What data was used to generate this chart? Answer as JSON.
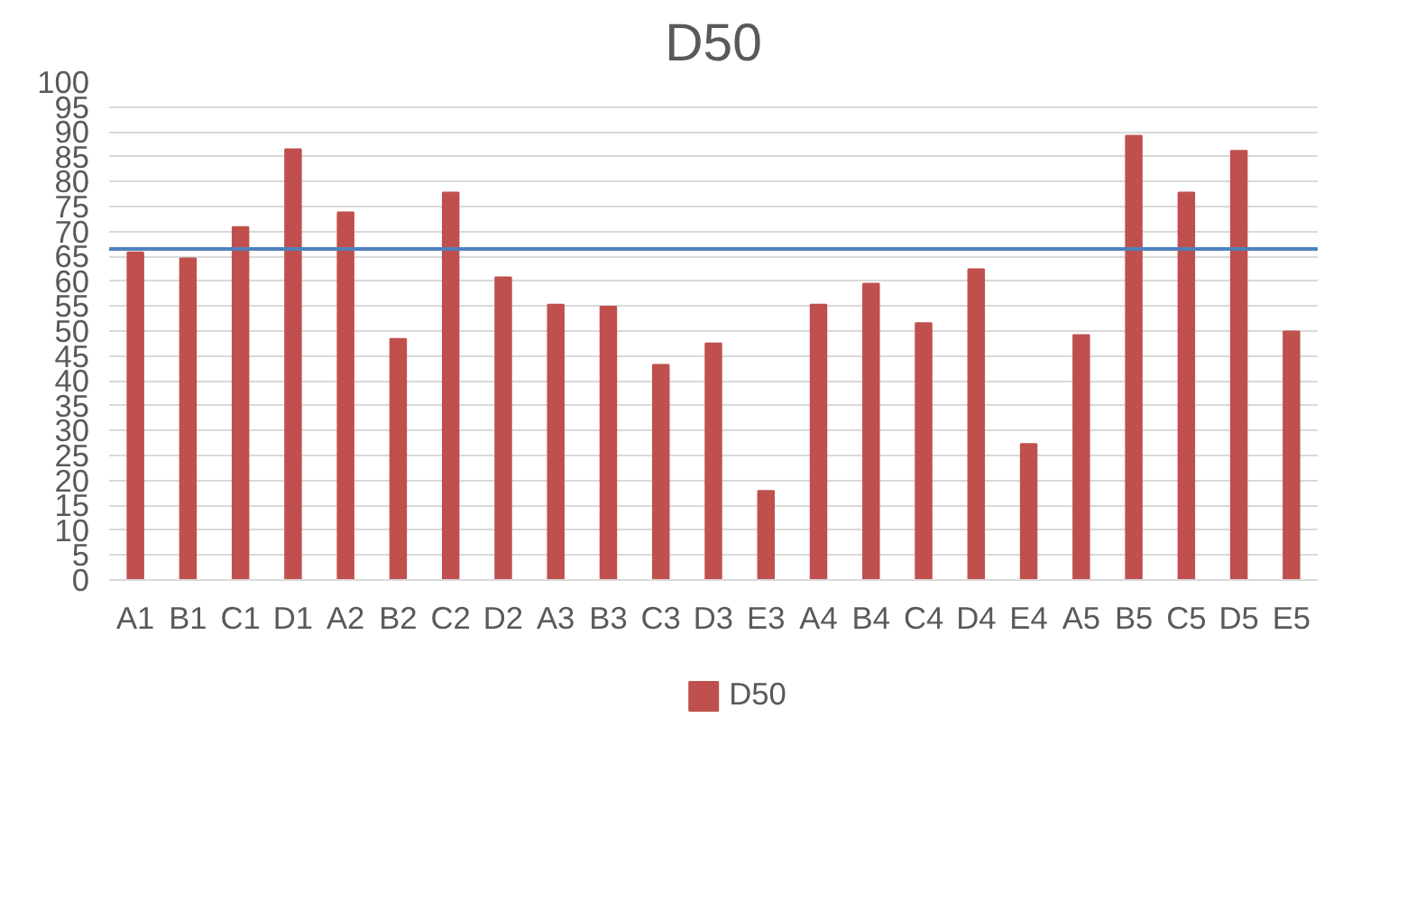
{
  "chart_data": {
    "type": "bar",
    "title": "D50",
    "categories": [
      "A1",
      "B1",
      "C1",
      "D1",
      "A2",
      "B2",
      "C2",
      "D2",
      "A3",
      "B3",
      "C3",
      "D3",
      "E3",
      "A4",
      "B4",
      "C4",
      "D4",
      "E4",
      "A5",
      "B5",
      "C5",
      "D5",
      "E5"
    ],
    "series": [
      {
        "name": "D50",
        "color": "#c0504d",
        "values": [
          65.8,
          64.6,
          70.9,
          86.5,
          73.8,
          48.4,
          77.8,
          60.8,
          55.3,
          54.9,
          43.2,
          47.5,
          17.9,
          55.3,
          59.5,
          51.6,
          62.4,
          27.3,
          49.2,
          89.2,
          77.8,
          86.2,
          49.9
        ]
      }
    ],
    "ylim": [
      0,
      100
    ],
    "yticks": [
      0,
      5,
      10,
      15,
      20,
      25,
      30,
      35,
      40,
      45,
      50,
      55,
      60,
      65,
      70,
      75,
      80,
      85,
      90,
      95,
      100
    ],
    "ref_lines": [
      {
        "axis": "y",
        "value": 66.5,
        "label": null,
        "color": "#4f81bd"
      }
    ],
    "grid": "y",
    "legend": "bottom"
  }
}
